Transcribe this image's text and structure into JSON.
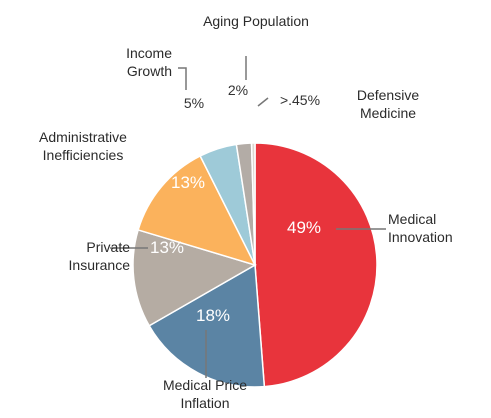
{
  "chart_data": {
    "type": "pie",
    "categories": [
      "Medical Innovation",
      "Medical Price Inflation",
      "Private Insurance",
      "Administrative Inefficiencies",
      "Income Growth",
      "Aging Population",
      "Defensive Medicine"
    ],
    "values": [
      49,
      18,
      13,
      13,
      5,
      2,
      0.45
    ],
    "value_labels": [
      "49%",
      "18%",
      "13%",
      "13%",
      "5%",
      "2%",
      ">.45%"
    ],
    "colors": [
      "#e8343c",
      "#5b84a4",
      "#b5aca3",
      "#fbb25c",
      "#9ecad8",
      "#b3aca6",
      "#dcd6cf"
    ]
  }
}
